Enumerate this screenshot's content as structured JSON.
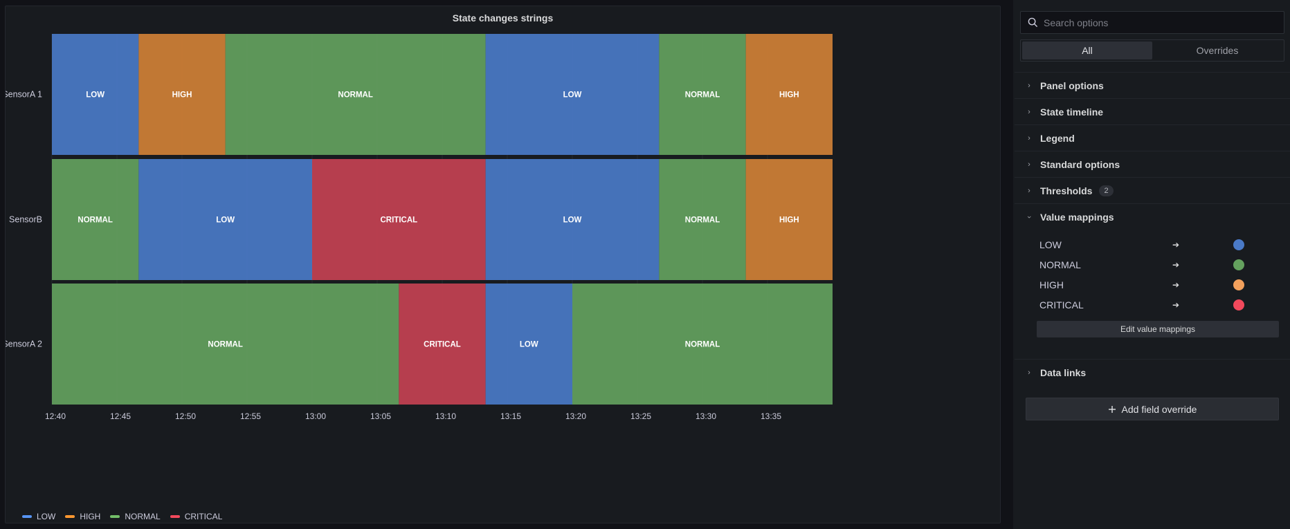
{
  "panel": {
    "title": "State changes strings"
  },
  "chart_data": {
    "type": "state-timeline",
    "time_ticks": [
      "12:40",
      "12:45",
      "12:50",
      "12:55",
      "13:00",
      "13:05",
      "13:10",
      "13:15",
      "13:20",
      "13:25",
      "13:30",
      "13:35"
    ],
    "x_range": [
      "12:40",
      "13:40"
    ],
    "states": [
      {
        "name": "LOW",
        "color": "#4a7ac7"
      },
      {
        "name": "HIGH",
        "color": "#d08036"
      },
      {
        "name": "NORMAL",
        "color": "#64a15e"
      },
      {
        "name": "CRITICAL",
        "color": "#c44152"
      }
    ],
    "rows": [
      {
        "label": "SensorA 1",
        "segments": [
          {
            "state": "LOW",
            "start": "12:40",
            "end": "12:46:40"
          },
          {
            "state": "HIGH",
            "start": "12:46:40",
            "end": "12:53:20"
          },
          {
            "state": "NORMAL",
            "start": "12:53:20",
            "end": "13:13:20"
          },
          {
            "state": "LOW",
            "start": "13:13:20",
            "end": "13:26:40"
          },
          {
            "state": "NORMAL",
            "start": "13:26:40",
            "end": "13:33:20"
          },
          {
            "state": "HIGH",
            "start": "13:33:20",
            "end": "13:40"
          }
        ]
      },
      {
        "label": "SensorB",
        "segments": [
          {
            "state": "NORMAL",
            "start": "12:40",
            "end": "12:46:40"
          },
          {
            "state": "LOW",
            "start": "12:46:40",
            "end": "13:00"
          },
          {
            "state": "CRITICAL",
            "start": "13:00",
            "end": "13:13:20"
          },
          {
            "state": "LOW",
            "start": "13:13:20",
            "end": "13:26:40"
          },
          {
            "state": "NORMAL",
            "start": "13:26:40",
            "end": "13:33:20"
          },
          {
            "state": "HIGH",
            "start": "13:33:20",
            "end": "13:40"
          }
        ]
      },
      {
        "label": "SensorA 2",
        "segments": [
          {
            "state": "NORMAL",
            "start": "12:40",
            "end": "13:06:40"
          },
          {
            "state": "CRITICAL",
            "start": "13:06:40",
            "end": "13:13:20"
          },
          {
            "state": "LOW",
            "start": "13:13:20",
            "end": "13:20"
          },
          {
            "state": "NORMAL",
            "start": "13:20",
            "end": "13:40"
          }
        ]
      }
    ],
    "legend": [
      "LOW",
      "HIGH",
      "NORMAL",
      "CRITICAL"
    ],
    "legend_placement": "bottom-left"
  },
  "options": {
    "search_placeholder": "Search options",
    "tabs": [
      "All",
      "Overrides"
    ],
    "active_tab": "All",
    "categories": [
      {
        "label": "Panel options",
        "expanded": false
      },
      {
        "label": "State timeline",
        "expanded": false
      },
      {
        "label": "Legend",
        "expanded": false
      },
      {
        "label": "Standard options",
        "expanded": false
      },
      {
        "label": "Thresholds",
        "expanded": false,
        "badge": "2"
      },
      {
        "label": "Value mappings",
        "expanded": true
      }
    ],
    "value_mappings": [
      {
        "value": "LOW",
        "arrow": "➔",
        "color": "#4a7ac7"
      },
      {
        "value": "NORMAL",
        "arrow": "➔",
        "color": "#64a15e"
      },
      {
        "value": "HIGH",
        "arrow": "➔",
        "color": "#f2a05c"
      },
      {
        "value": "CRITICAL",
        "arrow": "➔",
        "color": "#f2495c"
      }
    ],
    "edit_mappings_label": "Edit value mappings",
    "data_links_label": "Data links",
    "add_override_label": "Add field override",
    "add_override_icon": "plus-icon"
  }
}
